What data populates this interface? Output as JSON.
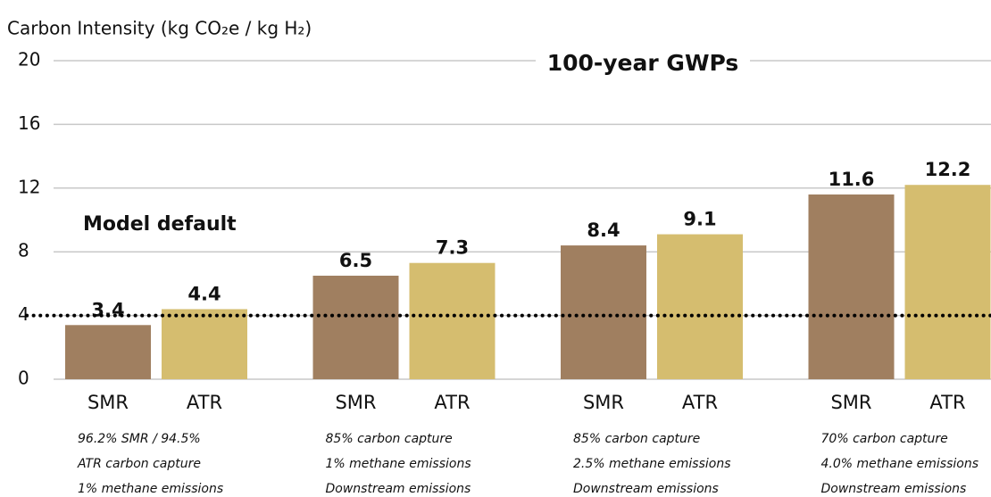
{
  "chart_data": {
    "type": "bar",
    "title": "100-year GWPs",
    "y_label": "Carbon Intensity (kg CO₂e / kg H₂)",
    "categories": [
      [
        "96.2% SMR / 94.5%",
        "ATR carbon capture",
        "1% methane emissions"
      ],
      [
        "85% carbon capture",
        "1% methane emissions",
        "Downstream emissions"
      ],
      [
        "85% carbon capture",
        "2.5% methane emissions",
        "Downstream emissions"
      ],
      [
        "70% carbon capture",
        "4.0% methane emissions",
        "Downstream emissions"
      ]
    ],
    "series": [
      {
        "name": "SMR",
        "color": "#a07f60",
        "values": [
          3.4,
          6.5,
          8.4,
          11.6
        ]
      },
      {
        "name": "ATR",
        "color": "#d5bd6f",
        "values": [
          4.4,
          7.3,
          9.1,
          12.2
        ]
      }
    ],
    "reference_line": {
      "value": 4,
      "label": "Model default"
    },
    "ylim": [
      0,
      20
    ],
    "yticks": [
      0,
      4,
      8,
      12,
      16,
      20
    ],
    "grid": true
  }
}
